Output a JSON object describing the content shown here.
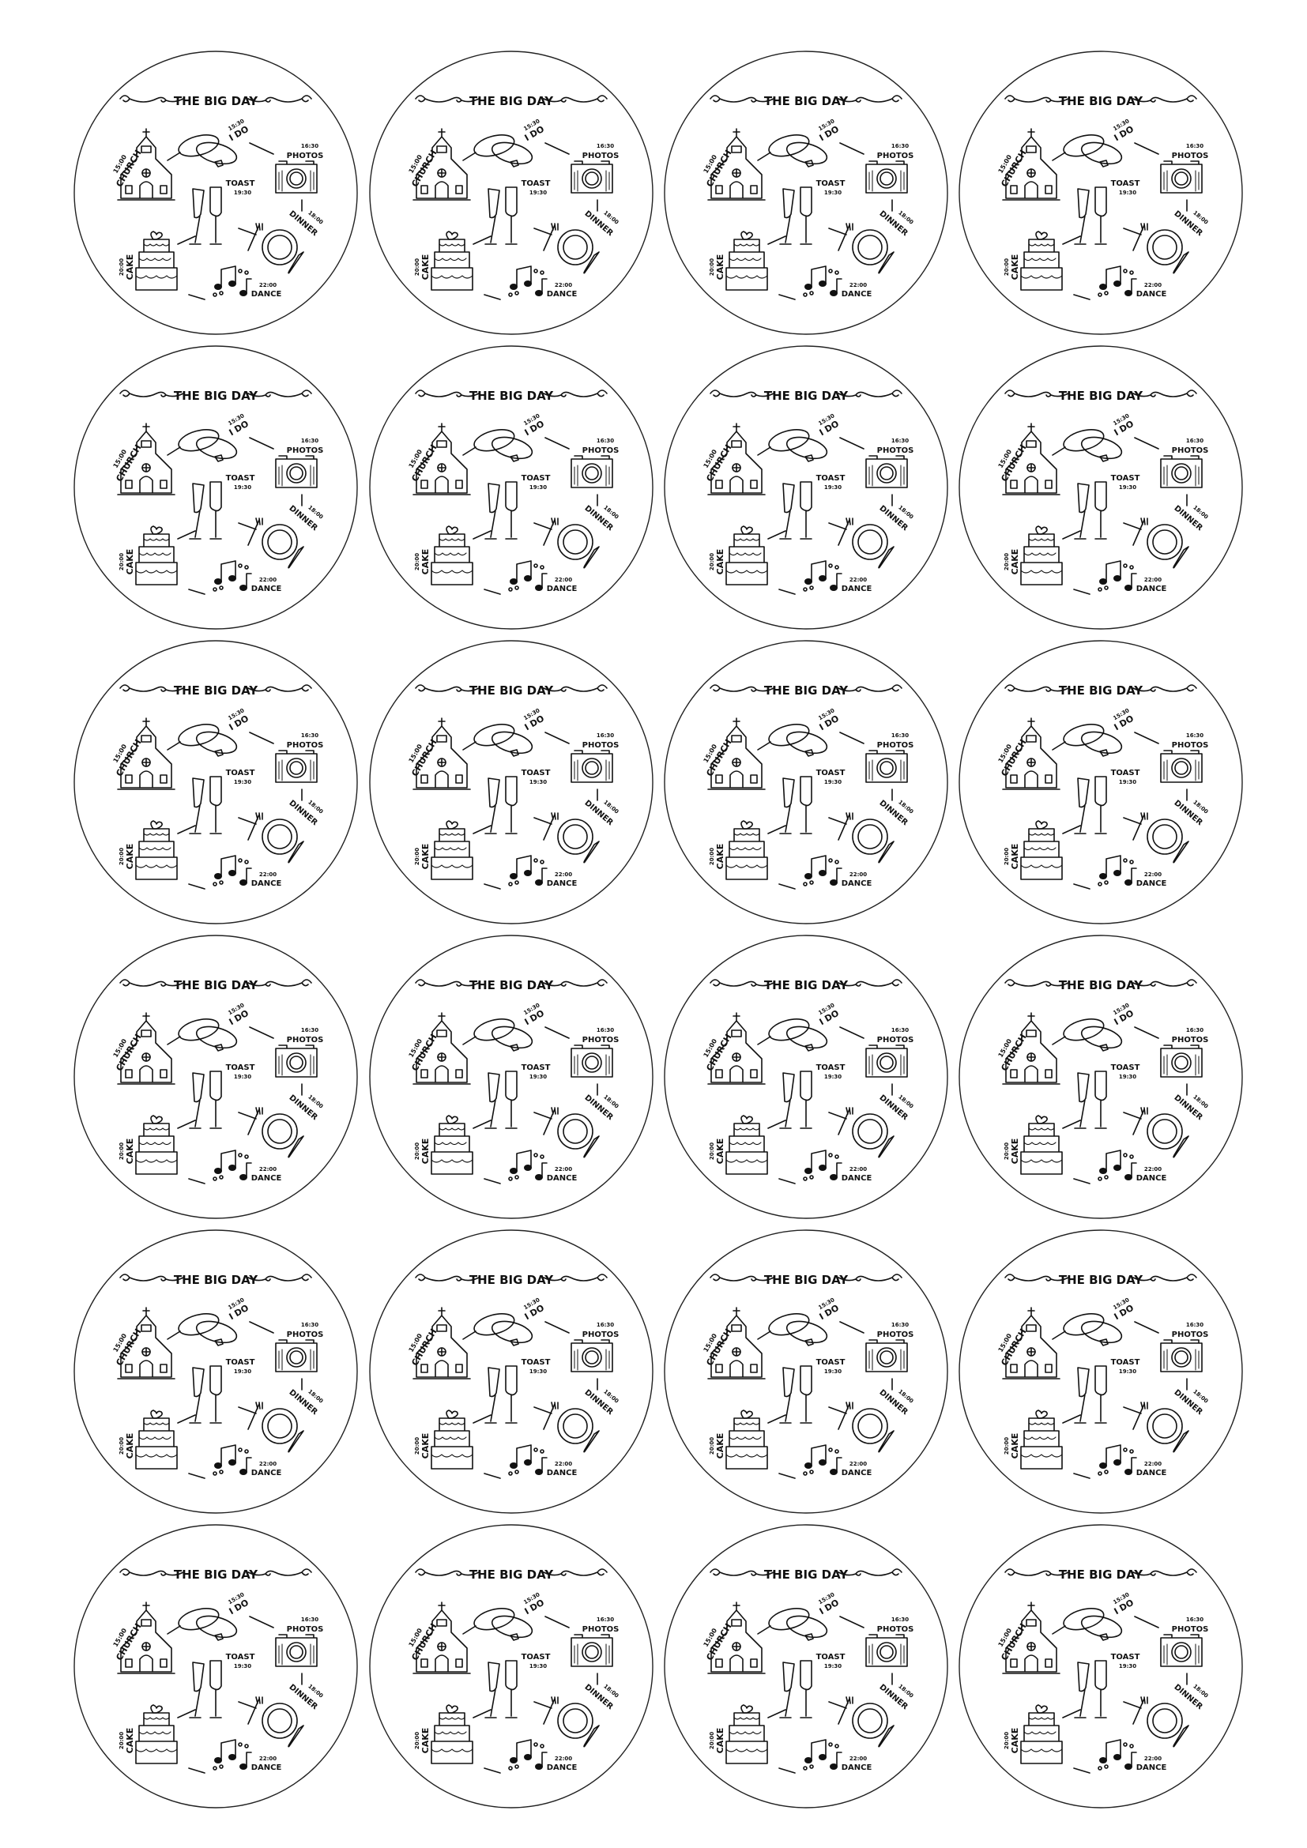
{
  "sheet": {
    "rows": 6,
    "columns": 4,
    "outline_color": "#222222",
    "ink_color": "#111111"
  },
  "sticker": {
    "title": "THE BIG DAY",
    "events": {
      "church": {
        "time": "15:00",
        "label": "CHURCH",
        "icon": "church-icon"
      },
      "i_do": {
        "time": "15:30",
        "label": "I DO",
        "icon": "rings-icon"
      },
      "photos": {
        "time": "16:30",
        "label": "PHOTOS",
        "icon": "camera-icon"
      },
      "toast": {
        "time": "19:30",
        "label": "TOAST",
        "icon": "champagne-glasses-icon"
      },
      "dinner": {
        "time": "18:00",
        "label": "DINNER",
        "icon": "plate-cutlery-icon"
      },
      "cake": {
        "time": "20:00",
        "label": "CAKE",
        "icon": "wedding-cake-icon"
      },
      "dance": {
        "time": "22:00",
        "label": "DANCE",
        "icon": "music-notes-icon"
      }
    }
  }
}
